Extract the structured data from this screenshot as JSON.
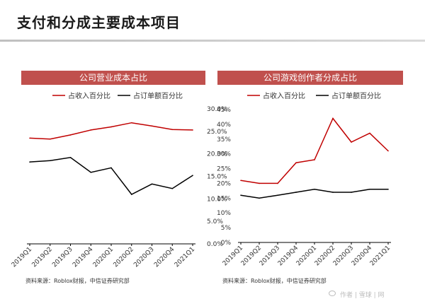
{
  "page": {
    "title": "支付和分成主要成本项目",
    "watermark": "作者 | 雪球 | 网"
  },
  "colors": {
    "accent": "#c0504d",
    "series_red": "#c00000",
    "series_black": "#000000"
  },
  "chart_data": [
    {
      "type": "line",
      "title": "公司营业成本占比",
      "categories": [
        "2019Q1",
        "2019Q2",
        "2019Q3",
        "2019Q4",
        "2020Q1",
        "2020Q2",
        "2020Q3",
        "2020Q4",
        "2021Q1"
      ],
      "series": [
        {
          "name": "占收入百分比",
          "color": "#c00000",
          "values": [
            23.5,
            23.3,
            24.2,
            25.3,
            26.0,
            26.9,
            26.2,
            25.4,
            25.3
          ]
        },
        {
          "name": "占订单额百分比",
          "color": "#000000",
          "values": [
            18.2,
            18.5,
            19.2,
            15.9,
            16.9,
            11.0,
            13.3,
            12.3,
            15.2
          ]
        }
      ],
      "yticks": [
        "0.0%",
        "5.0%",
        "10.0%",
        "15.0%",
        "20.0%",
        "25.0%",
        "30.0%"
      ],
      "ylim": [
        0,
        30
      ],
      "y_axis_side": "right",
      "legend": "top",
      "source_note": "资料来源：Roblox财报，中信证券研究部"
    },
    {
      "type": "line",
      "title": "公司游戏创作者分成占比",
      "categories": [
        "2019Q1",
        "2019Q2",
        "2019Q3",
        "2019Q4",
        "2020Q1",
        "2020Q2",
        "2020Q3",
        "2020Q4",
        "2021Q1"
      ],
      "series": [
        {
          "name": "占收入百分比",
          "color": "#c00000",
          "values": [
            21,
            20,
            20,
            27,
            28,
            42,
            34,
            37,
            31
          ]
        },
        {
          "name": "占订单额百分比",
          "color": "#000000",
          "values": [
            16,
            15,
            16,
            17,
            18,
            17,
            17,
            18,
            18
          ]
        }
      ],
      "yticks": [
        "0%",
        "5%",
        "10%",
        "15%",
        "20%",
        "25%",
        "30%",
        "35%",
        "40%",
        "45%"
      ],
      "ylim": [
        0,
        45
      ],
      "y_axis_side": "left",
      "legend": "top",
      "source_note": "资料来源：Roblox财报，中信证券研究部"
    }
  ]
}
